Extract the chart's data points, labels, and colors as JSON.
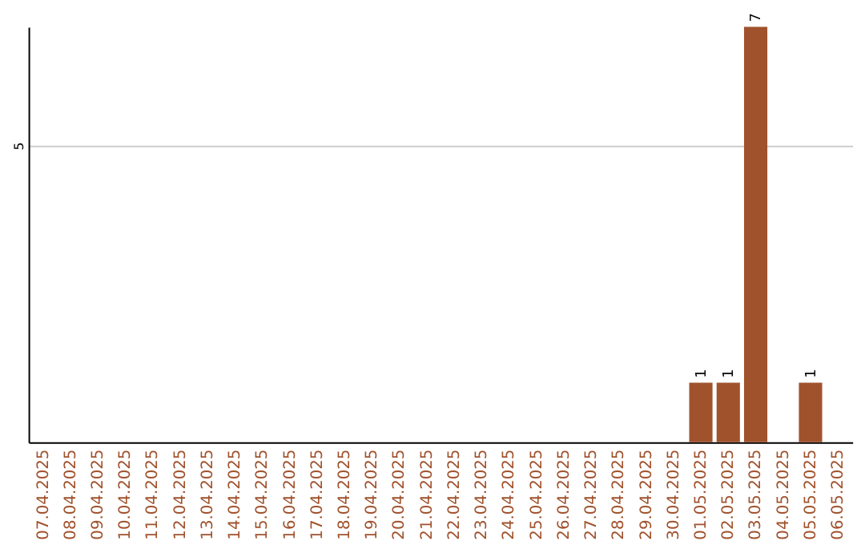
{
  "chart_data": {
    "type": "bar",
    "categories": [
      "07.04.2025",
      "08.04.2025",
      "09.04.2025",
      "10.04.2025",
      "11.04.2025",
      "12.04.2025",
      "13.04.2025",
      "14.04.2025",
      "15.04.2025",
      "16.04.2025",
      "17.04.2025",
      "18.04.2025",
      "19.04.2025",
      "20.04.2025",
      "21.04.2025",
      "22.04.2025",
      "23.04.2025",
      "24.04.2025",
      "25.04.2025",
      "26.04.2025",
      "27.04.2025",
      "28.04.2025",
      "29.04.2025",
      "30.04.2025",
      "01.05.2025",
      "02.05.2025",
      "03.05.2025",
      "04.05.2025",
      "05.05.2025",
      "06.05.2025"
    ],
    "values": [
      null,
      null,
      null,
      null,
      null,
      null,
      null,
      null,
      null,
      null,
      null,
      null,
      null,
      null,
      null,
      null,
      null,
      null,
      null,
      null,
      null,
      null,
      null,
      null,
      1,
      1,
      7,
      null,
      1,
      null
    ],
    "color": "#a0522d",
    "ylim": [
      0,
      7
    ],
    "yticks": [
      5
    ],
    "grid": "y",
    "data_labels": true
  }
}
